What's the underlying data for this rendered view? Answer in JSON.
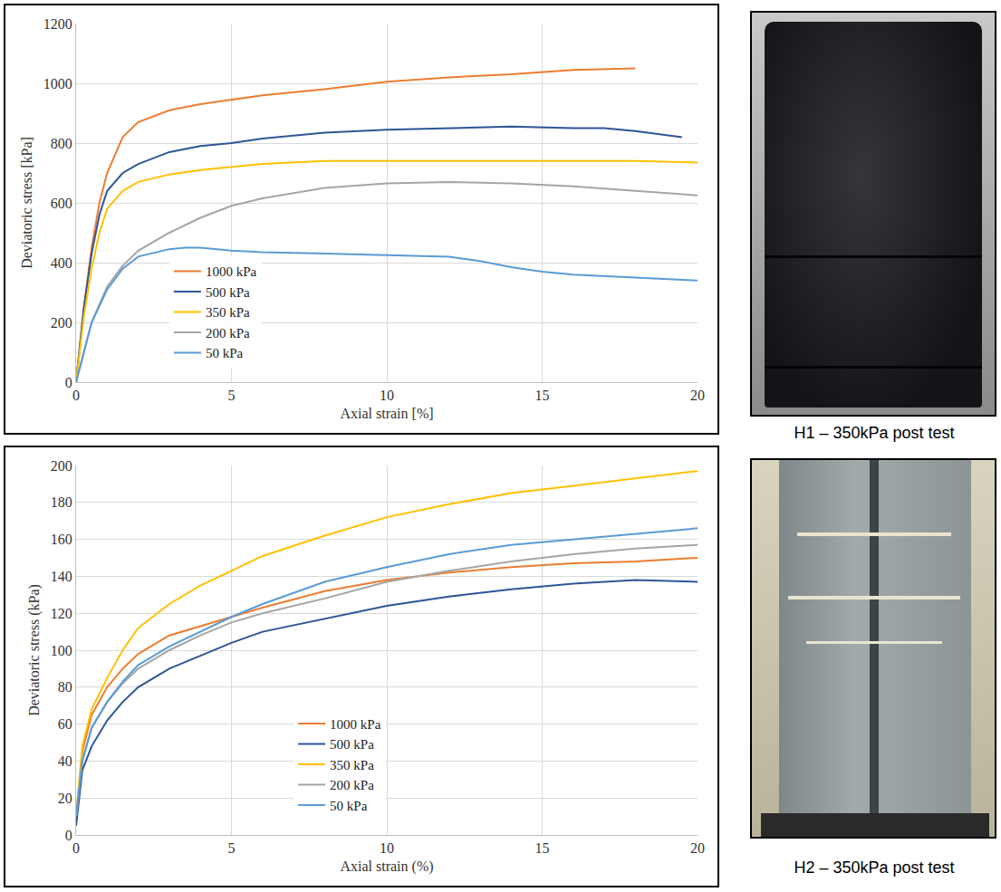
{
  "chart_data": [
    {
      "type": "line",
      "x_label": "Axial strain [%]",
      "y_label": "Deviatoric stress [kPa]",
      "xlim": [
        0,
        20
      ],
      "xticks": [
        0,
        5,
        10,
        15,
        20
      ],
      "ylim": [
        0,
        1200
      ],
      "yticks": [
        0,
        200,
        400,
        600,
        800,
        1000,
        1200
      ],
      "grid": true,
      "legend": "bottom left",
      "series": [
        {
          "name": "1000 kPa",
          "color": "#ED7D31",
          "x": [
            0,
            0.25,
            0.5,
            0.75,
            1,
            1.5,
            2,
            3,
            4,
            5,
            6,
            8,
            10,
            12,
            14,
            16,
            18
          ],
          "values": [
            0,
            250,
            450,
            600,
            700,
            820,
            870,
            910,
            930,
            945,
            960,
            980,
            1005,
            1020,
            1030,
            1045,
            1050
          ]
        },
        {
          "name": "500 kPa",
          "color": "#2F5597",
          "x": [
            0,
            0.25,
            0.5,
            0.75,
            1,
            1.5,
            2,
            3,
            4,
            5,
            6,
            8,
            10,
            12,
            14,
            16,
            17,
            18,
            19.5
          ],
          "values": [
            0,
            250,
            430,
            560,
            640,
            700,
            730,
            770,
            790,
            800,
            815,
            835,
            845,
            850,
            855,
            850,
            850,
            840,
            820
          ]
        },
        {
          "name": "350 kPa",
          "color": "#FFC000",
          "x": [
            0,
            0.25,
            0.5,
            0.75,
            1,
            1.5,
            2,
            3,
            4,
            5,
            6,
            8,
            10,
            12,
            14,
            16,
            18,
            20
          ],
          "values": [
            0,
            220,
            380,
            500,
            580,
            640,
            670,
            695,
            710,
            720,
            730,
            740,
            740,
            740,
            740,
            740,
            740,
            735
          ]
        },
        {
          "name": "200 kPa",
          "color": "#A5A5A5",
          "x": [
            0,
            0.5,
            1,
            1.5,
            2,
            3,
            4,
            5,
            6,
            8,
            10,
            12,
            14,
            16,
            18,
            20
          ],
          "values": [
            0,
            200,
            320,
            390,
            440,
            500,
            550,
            590,
            615,
            650,
            665,
            670,
            665,
            655,
            640,
            625
          ]
        },
        {
          "name": "50 kPa",
          "color": "#5B9BD5",
          "x": [
            0,
            0.5,
            1,
            1.5,
            2,
            3,
            3.5,
            4,
            5,
            6,
            8,
            10,
            12,
            13,
            14,
            15,
            16,
            18,
            20
          ],
          "values": [
            0,
            200,
            310,
            380,
            420,
            445,
            450,
            450,
            440,
            435,
            430,
            425,
            420,
            405,
            385,
            370,
            360,
            350,
            340
          ]
        }
      ]
    },
    {
      "type": "line",
      "x_label": "Axial strain (%)",
      "y_label": "Deviatoric stress (kPa)",
      "xlim": [
        0,
        20
      ],
      "xticks": [
        0,
        5,
        10,
        15,
        20
      ],
      "ylim": [
        0,
        200
      ],
      "yticks": [
        0,
        20,
        40,
        60,
        80,
        100,
        120,
        140,
        160,
        180,
        200
      ],
      "grid": true,
      "legend": "bottom center",
      "series": [
        {
          "name": "1000 kPa",
          "color": "#ED7D31",
          "x": [
            0,
            0.2,
            0.5,
            1,
            1.5,
            2,
            3,
            4,
            5,
            6,
            8,
            10,
            12,
            14,
            16,
            18,
            20
          ],
          "values": [
            10,
            45,
            65,
            80,
            90,
            98,
            108,
            113,
            118,
            123,
            132,
            138,
            142,
            145,
            147,
            148,
            150
          ]
        },
        {
          "name": "500 kPa",
          "color": "#2F5597",
          "x": [
            0,
            0.2,
            0.5,
            1,
            1.5,
            2,
            3,
            4,
            5,
            6,
            8,
            10,
            12,
            14,
            16,
            18,
            20
          ],
          "values": [
            5,
            35,
            48,
            62,
            72,
            80,
            90,
            97,
            104,
            110,
            117,
            124,
            129,
            133,
            136,
            138,
            137
          ]
        },
        {
          "name": "350 kPa",
          "color": "#FFC000",
          "x": [
            0,
            0.2,
            0.5,
            1,
            1.5,
            2,
            3,
            4,
            5,
            6,
            8,
            10,
            12,
            14,
            16,
            18,
            20
          ],
          "values": [
            10,
            48,
            68,
            85,
            100,
            112,
            125,
            135,
            143,
            151,
            162,
            172,
            179,
            185,
            189,
            193,
            197
          ]
        },
        {
          "name": "200 kPa",
          "color": "#A5A5A5",
          "x": [
            0,
            0.2,
            0.5,
            1,
            1.5,
            2,
            3,
            4,
            5,
            6,
            8,
            10,
            12,
            14,
            16,
            18,
            20
          ],
          "values": [
            10,
            40,
            58,
            72,
            82,
            90,
            100,
            108,
            115,
            120,
            128,
            137,
            143,
            148,
            152,
            155,
            157
          ]
        },
        {
          "name": "50 kPa",
          "color": "#5B9BD5",
          "x": [
            0,
            0.2,
            0.5,
            1,
            1.5,
            2,
            3,
            4,
            5,
            6,
            8,
            10,
            12,
            14,
            16,
            18,
            20
          ],
          "values": [
            10,
            40,
            58,
            72,
            83,
            92,
            102,
            110,
            118,
            125,
            137,
            145,
            152,
            157,
            160,
            163,
            166
          ]
        }
      ]
    }
  ],
  "images": [
    {
      "caption": "H1 – 350kPa post test"
    },
    {
      "caption": "H2 – 350kPa post test"
    }
  ]
}
